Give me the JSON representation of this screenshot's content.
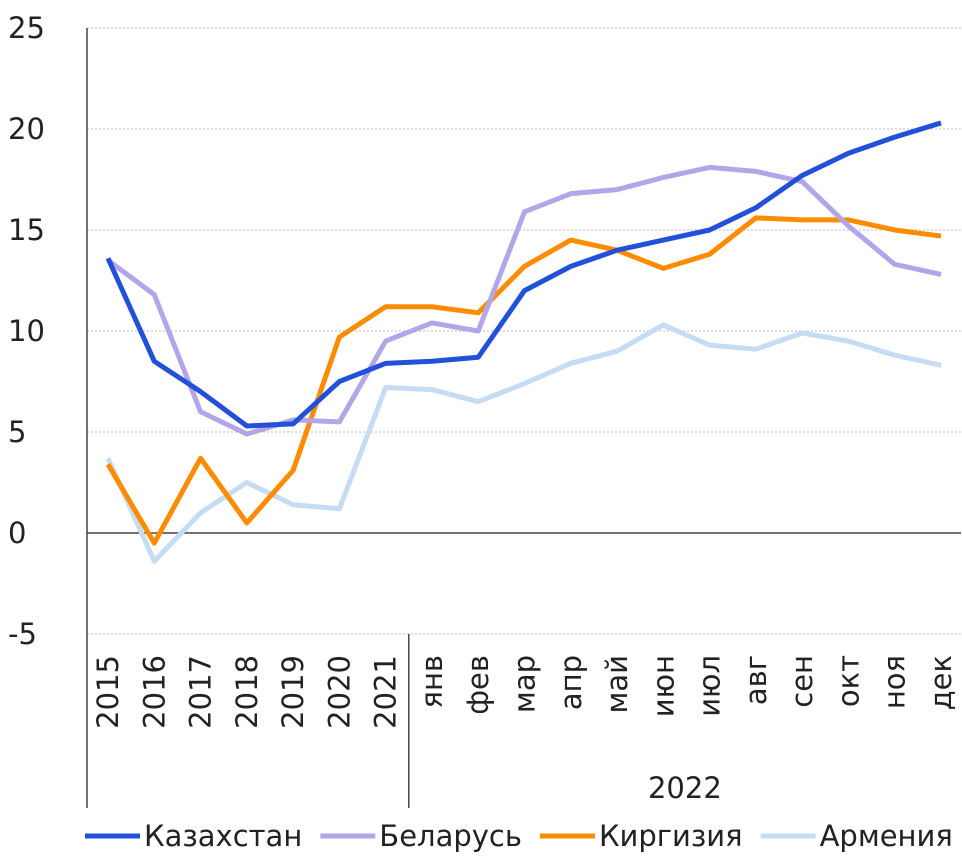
{
  "chart_data": {
    "type": "line",
    "categories": [
      "2015",
      "2016",
      "2017",
      "2018",
      "2019",
      "2020",
      "2021",
      "янв",
      "фев",
      "мар",
      "апр",
      "май",
      "июн",
      "июл",
      "авг",
      "сен",
      "окт",
      "ноя",
      "дек"
    ],
    "x_group_label": "2022",
    "series": [
      {
        "name": "Казахстан",
        "color": "#2350d8",
        "values": [
          13.6,
          8.5,
          7.0,
          5.3,
          5.4,
          7.5,
          8.4,
          8.5,
          8.7,
          12.0,
          13.2,
          14.0,
          14.5,
          15.0,
          16.1,
          17.7,
          18.8,
          19.6,
          20.3
        ]
      },
      {
        "name": "Беларусь",
        "color": "#b3a5e8",
        "values": [
          13.5,
          11.8,
          6.0,
          4.9,
          5.6,
          5.5,
          9.5,
          10.4,
          10.0,
          15.9,
          16.8,
          17.0,
          17.6,
          18.1,
          17.9,
          17.4,
          15.2,
          13.3,
          12.8
        ]
      },
      {
        "name": "Киргизия",
        "color": "#ff8c00",
        "values": [
          3.4,
          -0.5,
          3.7,
          0.5,
          3.1,
          9.7,
          11.2,
          11.2,
          10.9,
          13.2,
          14.5,
          14.0,
          13.1,
          13.8,
          15.6,
          15.5,
          15.5,
          15.0,
          14.7
        ]
      },
      {
        "name": "Армения",
        "color": "#c5dcf3",
        "values": [
          3.7,
          -1.4,
          1.0,
          2.5,
          1.4,
          1.2,
          7.2,
          7.1,
          6.5,
          7.4,
          8.4,
          9.0,
          10.3,
          9.3,
          9.1,
          9.9,
          9.5,
          8.8,
          8.3
        ]
      }
    ],
    "ylim": [
      -5,
      25
    ],
    "yticks": [
      -5,
      0,
      5,
      10,
      15,
      20,
      25
    ],
    "grid": true,
    "legend": "bottom"
  }
}
